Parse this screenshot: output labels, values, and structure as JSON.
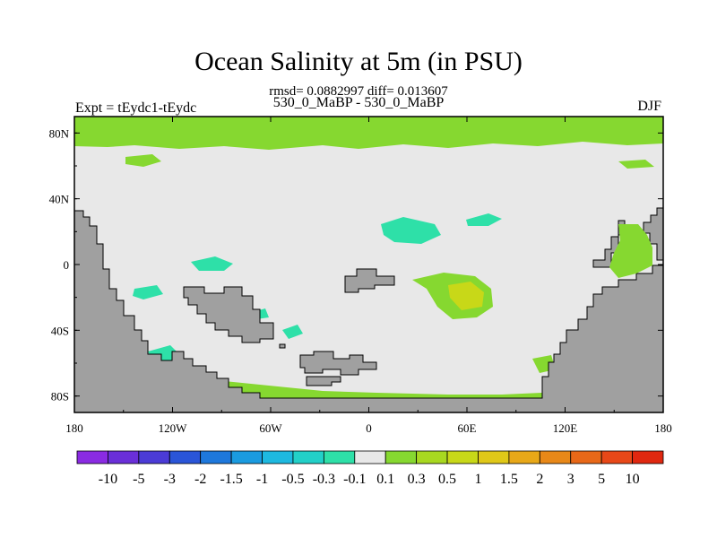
{
  "chart_data": {
    "type": "heatmap",
    "title": "Ocean Salinity at 5m (in PSU)",
    "stats": "rmsd= 0.0882997 diff= 0.013607",
    "left_label": "Expt = tEydc1-tEydc",
    "center_label": "530_0_MaBP - 530_0_MaBP",
    "right_label": "DJF",
    "x_ticks": [
      "180",
      "120W",
      "60W",
      "0",
      "60E",
      "120E",
      "180"
    ],
    "y_ticks": [
      "80N",
      "40N",
      "0",
      "40S",
      "80S"
    ],
    "x_range": [
      -180,
      180
    ],
    "y_range": [
      -90,
      90
    ],
    "colorbar": {
      "labels": [
        "-10",
        "-5",
        "-3",
        "-2",
        "-1.5",
        "-1",
        "-0.5",
        "-0.3",
        "-0.1",
        "0.1",
        "0.3",
        "0.5",
        "1",
        "1.5",
        "2",
        "3",
        "5",
        "10"
      ],
      "colors": [
        "#8a2be2",
        "#6a2fd8",
        "#4b3bd6",
        "#2a55d8",
        "#1e78dc",
        "#1a9be0",
        "#1eb9e0",
        "#22d0c8",
        "#2ee0a8",
        "#e8e8e8",
        "#86d830",
        "#a8d820",
        "#c8d818",
        "#e0c818",
        "#e8a818",
        "#e88818",
        "#e86818",
        "#e84818",
        "#e02810"
      ]
    },
    "colors": {
      "land": "#a0a0a0",
      "near_zero": "#e8e8e8",
      "slight_positive": "#86d830",
      "slight_negative": "#2ee0a8",
      "moderate_positive": "#c8d818"
    }
  }
}
